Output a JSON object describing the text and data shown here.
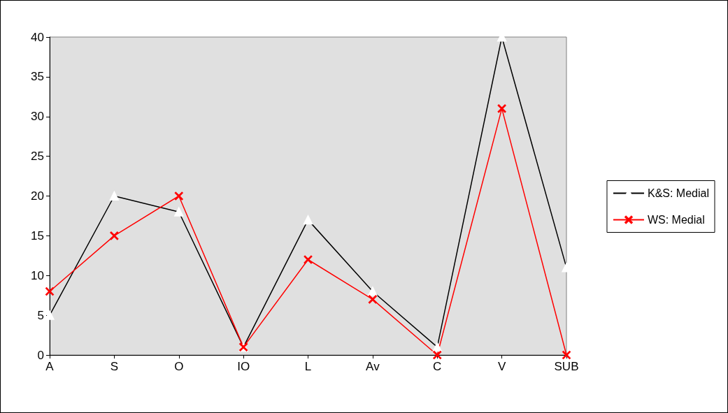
{
  "chart_data": {
    "type": "line",
    "categories": [
      "A",
      "S",
      "O",
      "IO",
      "L",
      "Av",
      "C",
      "V",
      "SUB"
    ],
    "series": [
      {
        "name": "K&S: Medial",
        "color": "#000000",
        "marker": "triangle",
        "values": [
          5,
          20,
          18,
          1,
          17,
          8,
          1,
          40,
          11
        ]
      },
      {
        "name": "WS: Medial",
        "color": "#ff0000",
        "marker": "cross",
        "values": [
          8,
          15,
          20,
          1,
          12,
          7,
          0,
          31,
          0
        ]
      }
    ],
    "ylim": [
      0,
      40
    ],
    "yticks": [
      0,
      5,
      10,
      15,
      20,
      25,
      30,
      35,
      40
    ],
    "grid": false,
    "legend": "right",
    "line_style": "solid"
  }
}
